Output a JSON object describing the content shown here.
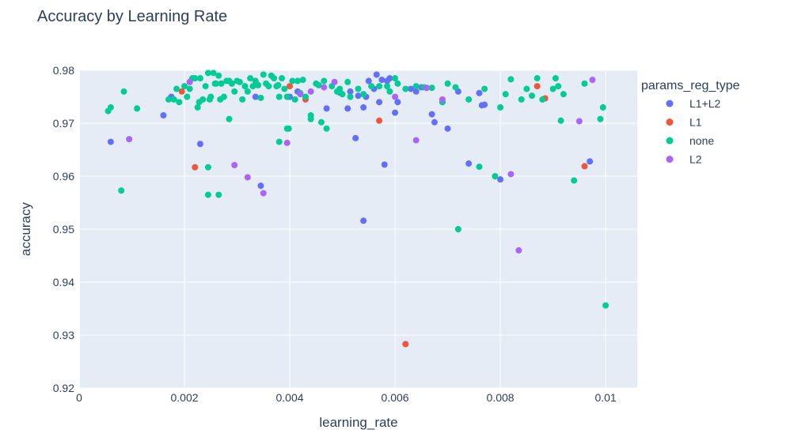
{
  "chart_data": {
    "type": "scatter",
    "title": "Accuracy by Learning Rate",
    "xlabel": "learning_rate",
    "ylabel": "accuracy",
    "xlim": [
      0,
      0.0106
    ],
    "ylim": [
      0.92,
      0.98
    ],
    "x_ticks": [
      0,
      0.002,
      0.004,
      0.006,
      0.008,
      0.01
    ],
    "x_tick_labels": [
      "0",
      "0.002",
      "0.004",
      "0.006",
      "0.008",
      "0.01"
    ],
    "y_ticks": [
      0.92,
      0.93,
      0.94,
      0.95,
      0.96,
      0.97,
      0.98
    ],
    "y_tick_labels": [
      "0.92",
      "0.93",
      "0.94",
      "0.95",
      "0.96",
      "0.97",
      "0.98"
    ],
    "grid": true,
    "legend_title": "params_reg_type",
    "legend_position": "right",
    "colors": {
      "plot_bg": "#e5ecf6",
      "grid": "#ffffff",
      "text": "#2a3f5f"
    },
    "series": [
      {
        "name": "L1+L2",
        "color": "#636efa",
        "x": [
          0.0006,
          0.0016,
          0.00175,
          0.0023,
          0.00335,
          0.00345,
          0.004,
          0.00415,
          0.0047,
          0.00495,
          0.0051,
          0.00515,
          0.00525,
          0.0053,
          0.0054,
          0.00545,
          0.0055,
          0.0056,
          0.00565,
          0.0057,
          0.00575,
          0.0058,
          0.00585,
          0.0059,
          0.006,
          0.00605,
          0.0063,
          0.0064,
          0.0065,
          0.0067,
          0.00675,
          0.0069,
          0.007,
          0.0072,
          0.0074,
          0.0076,
          0.00765,
          0.0077,
          0.008,
          0.0097,
          0.0054
        ],
        "y": [
          0.9665,
          0.9715,
          0.975,
          0.9661,
          0.975,
          0.9582,
          0.975,
          0.976,
          0.9728,
          0.9758,
          0.9728,
          0.976,
          0.9672,
          0.9752,
          0.973,
          0.975,
          0.978,
          0.9765,
          0.9792,
          0.974,
          0.9782,
          0.9622,
          0.978,
          0.9785,
          0.972,
          0.974,
          0.9765,
          0.976,
          0.9768,
          0.9717,
          0.9702,
          0.974,
          0.969,
          0.976,
          0.9624,
          0.9757,
          0.9734,
          0.9735,
          0.9594,
          0.9628,
          0.9516
        ]
      },
      {
        "name": "L1",
        "color": "#ef553b",
        "x": [
          0.00195,
          0.0022,
          0.004,
          0.0043,
          0.0057,
          0.0062,
          0.0087,
          0.00885,
          0.0096
        ],
        "y": [
          0.976,
          0.9617,
          0.977,
          0.9745,
          0.9705,
          0.9283,
          0.977,
          0.9747,
          0.9619
        ]
      },
      {
        "name": "none",
        "color": "#00cc96",
        "x": [
          0.00055,
          0.0008,
          0.00085,
          0.0011,
          0.0017,
          0.0018,
          0.00185,
          0.0019,
          0.002,
          0.00205,
          0.0021,
          0.00215,
          0.0022,
          0.00225,
          0.00228,
          0.0023,
          0.00235,
          0.0024,
          0.00245,
          0.00248,
          0.0025,
          0.00255,
          0.00258,
          0.0026,
          0.00265,
          0.00268,
          0.0027,
          0.00275,
          0.0028,
          0.00285,
          0.0029,
          0.00295,
          0.003,
          0.00305,
          0.0031,
          0.00315,
          0.0032,
          0.00325,
          0.0033,
          0.00335,
          0.0034,
          0.00345,
          0.0035,
          0.00355,
          0.0036,
          0.00365,
          0.0037,
          0.00375,
          0.00378,
          0.0038,
          0.00385,
          0.0039,
          0.00395,
          0.00398,
          0.00405,
          0.0041,
          0.00415,
          0.0042,
          0.00425,
          0.0043,
          0.0044,
          0.0045,
          0.00455,
          0.0046,
          0.00465,
          0.0047,
          0.0048,
          0.0049,
          0.00495,
          0.005,
          0.0051,
          0.00515,
          0.0053,
          0.0054,
          0.00555,
          0.0057,
          0.00585,
          0.0059,
          0.006,
          0.00605,
          0.0062,
          0.0064,
          0.00655,
          0.0067,
          0.0069,
          0.007,
          0.00715,
          0.0072,
          0.0074,
          0.0076,
          0.0077,
          0.0079,
          0.008,
          0.0081,
          0.0082,
          0.0084,
          0.0085,
          0.0086,
          0.0087,
          0.0088,
          0.009,
          0.00905,
          0.0091,
          0.00915,
          0.0092,
          0.0094,
          0.0096,
          0.0099,
          0.00995,
          0.01,
          0.0006,
          0.00245,
          0.00265,
          0.00245,
          0.00285,
          0.0038,
          0.00395,
          0.0044
        ],
        "y": [
          0.9723,
          0.9573,
          0.976,
          0.9728,
          0.9745,
          0.9745,
          0.9765,
          0.974,
          0.977,
          0.975,
          0.9765,
          0.9785,
          0.9785,
          0.973,
          0.974,
          0.9785,
          0.9745,
          0.977,
          0.9795,
          0.9745,
          0.975,
          0.9795,
          0.9775,
          0.9775,
          0.979,
          0.9745,
          0.9775,
          0.975,
          0.978,
          0.9708,
          0.9775,
          0.976,
          0.978,
          0.9778,
          0.9745,
          0.977,
          0.976,
          0.9785,
          0.977,
          0.978,
          0.9772,
          0.9748,
          0.9792,
          0.9775,
          0.977,
          0.979,
          0.9785,
          0.977,
          0.9772,
          0.975,
          0.9785,
          0.9765,
          0.975,
          0.969,
          0.978,
          0.9745,
          0.978,
          0.9757,
          0.9782,
          0.975,
          0.9715,
          0.9775,
          0.9772,
          0.9702,
          0.978,
          0.969,
          0.977,
          0.976,
          0.9765,
          0.9755,
          0.9778,
          0.975,
          0.9765,
          0.9755,
          0.977,
          0.977,
          0.977,
          0.976,
          0.9785,
          0.9775,
          0.9765,
          0.977,
          0.9768,
          0.9767,
          0.974,
          0.9775,
          0.9768,
          0.95,
          0.9745,
          0.9618,
          0.9765,
          0.96,
          0.973,
          0.9755,
          0.9783,
          0.9745,
          0.9765,
          0.9752,
          0.9785,
          0.9745,
          0.9765,
          0.9785,
          0.977,
          0.9705,
          0.9755,
          0.9592,
          0.9775,
          0.9708,
          0.973,
          0.9356,
          0.973,
          0.9565,
          0.9565,
          0.9617,
          0.978,
          0.9665,
          0.969,
          0.9708
        ]
      },
      {
        "name": "L2",
        "color": "#ab63fa",
        "x": [
          0.00095,
          0.0021,
          0.00295,
          0.0032,
          0.0035,
          0.00395,
          0.0042,
          0.0044,
          0.00465,
          0.00485,
          0.006,
          0.0064,
          0.0066,
          0.0069,
          0.0082,
          0.00835,
          0.0095,
          0.00975
        ],
        "y": [
          0.967,
          0.9778,
          0.9621,
          0.9598,
          0.9568,
          0.9663,
          0.9755,
          0.976,
          0.9768,
          0.9778,
          0.975,
          0.9668,
          0.9767,
          0.9745,
          0.9604,
          0.946,
          0.9704,
          0.9782
        ]
      }
    ]
  }
}
